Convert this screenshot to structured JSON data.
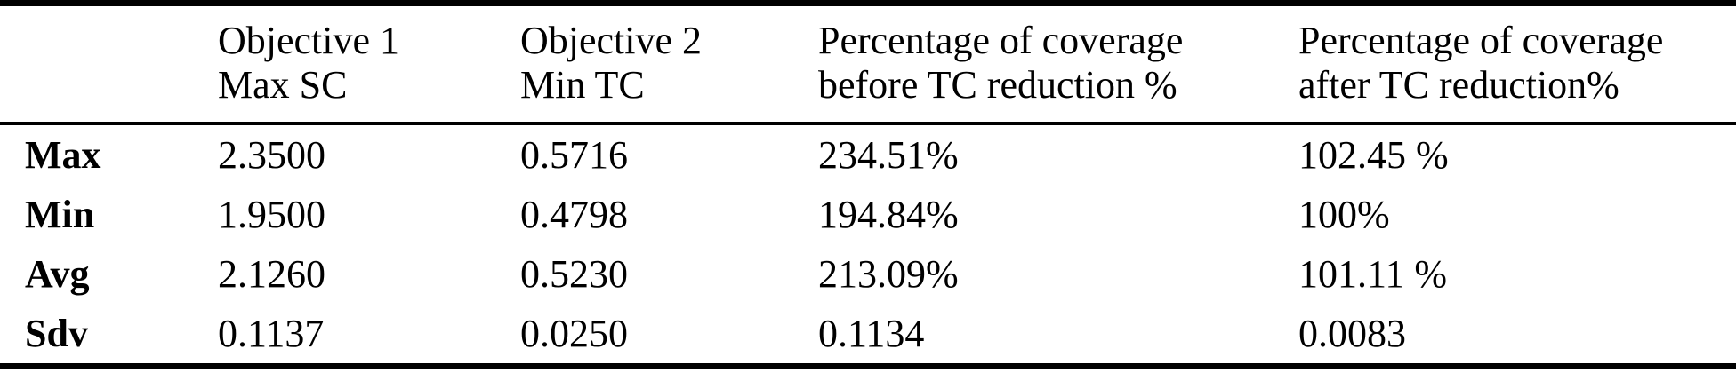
{
  "table": {
    "columns": [
      {
        "line1": "",
        "line2": ""
      },
      {
        "line1": "Objective 1",
        "line2": "Max SC"
      },
      {
        "line1": "Objective 2",
        "line2": "Min TC"
      },
      {
        "line1": "Percentage of coverage",
        "line2": "before TC reduction %"
      },
      {
        "line1": "Percentage of coverage",
        "line2": "after TC reduction%"
      }
    ],
    "rows": [
      {
        "label": "Max",
        "values": [
          "2.3500",
          "0.5716",
          "234.51%",
          "102.45 %"
        ]
      },
      {
        "label": "Min",
        "values": [
          "1.9500",
          "0.4798",
          "194.84%",
          "100%"
        ]
      },
      {
        "label": "Avg",
        "values": [
          "2.1260",
          "0.5230",
          "213.09%",
          "101.11 %"
        ]
      },
      {
        "label": "Sdv",
        "values": [
          "0.1137",
          "0.0250",
          "0.1134",
          "0.0083"
        ]
      }
    ],
    "colors": {
      "text": "#000000",
      "background": "#ffffff",
      "rule": "#000000"
    }
  },
  "chart_data": {
    "type": "table",
    "title": "",
    "column_headers": [
      "",
      "Objective 1 Max SC",
      "Objective 2 Min TC",
      "Percentage of coverage before TC reduction %",
      "Percentage of coverage after TC reduction%"
    ],
    "row_headers": [
      "Max",
      "Min",
      "Avg",
      "Sdv"
    ],
    "cells": [
      [
        "2.3500",
        "0.5716",
        "234.51%",
        "102.45 %"
      ],
      [
        "1.9500",
        "0.4798",
        "194.84%",
        "100%"
      ],
      [
        "2.1260",
        "0.5230",
        "213.09%",
        "101.11 %"
      ],
      [
        "0.1137",
        "0.0250",
        "0.1134",
        "0.0083"
      ]
    ]
  }
}
